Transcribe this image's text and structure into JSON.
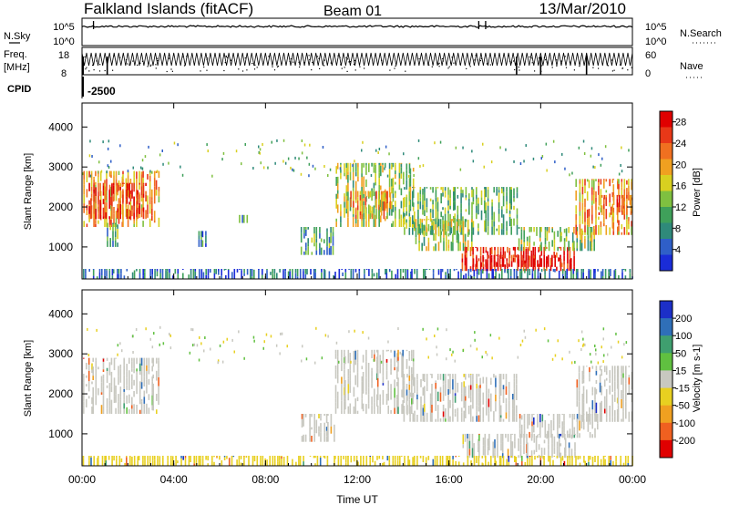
{
  "header": {
    "station": "Falkland Islands (fitACF)",
    "beam": "Beam 01",
    "date": "13/Mar/2010"
  },
  "params": {
    "nsky_label": "N.Sky",
    "nsky_ticks": [
      "10^5",
      "10^0"
    ],
    "nsearch_label": "N.Search",
    "nsearch_ticks": [
      "10^5",
      "10^0"
    ],
    "freq_label_1": "Freq.",
    "freq_label_2": "[MHz]",
    "freq_ticks": [
      "18",
      "8"
    ],
    "nave_label": "Nave",
    "nave_ticks": [
      "60",
      "0"
    ],
    "cpid_label": "CPID",
    "cpid_value": "-2500"
  },
  "x_axis": {
    "label": "Time UT",
    "ticks": [
      "00:00",
      "04:00",
      "08:00",
      "12:00",
      "16:00",
      "20:00",
      "00:00"
    ]
  },
  "chart_data": [
    {
      "type": "heatmap",
      "panel": "power",
      "ylabel": "Slant Range [km]",
      "yticks": [
        1000,
        2000,
        3000,
        4000
      ],
      "ylim": [
        200,
        4600
      ],
      "xlim_hours": [
        0,
        24
      ],
      "colorbar_label": "Power [dB]",
      "colorbar_ticks": [
        4,
        8,
        12,
        16,
        20,
        24,
        28
      ],
      "colorbar_colors": [
        "#1a2cd8",
        "#2f5fc8",
        "#2f8a7a",
        "#3fa05a",
        "#7fc040",
        "#d8d020",
        "#f0a020",
        "#f07020",
        "#e83818",
        "#e00000"
      ],
      "regions": [
        {
          "t": [
            0.0,
            3.4
          ],
          "r": [
            1500,
            2900
          ],
          "value": 20
        },
        {
          "t": [
            0.2,
            2.8
          ],
          "r": [
            1700,
            2600
          ],
          "value": 26
        },
        {
          "t": [
            1.0,
            1.6
          ],
          "r": [
            1000,
            1600
          ],
          "value": 10
        },
        {
          "t": [
            5.0,
            5.4
          ],
          "r": [
            1000,
            1400
          ],
          "value": 8
        },
        {
          "t": [
            6.8,
            7.2
          ],
          "r": [
            1600,
            1800
          ],
          "value": 10
        },
        {
          "t": [
            9.5,
            11.0
          ],
          "r": [
            800,
            1500
          ],
          "value": 10
        },
        {
          "t": [
            11.0,
            14.5
          ],
          "r": [
            1500,
            3100
          ],
          "value": 14
        },
        {
          "t": [
            11.5,
            13.5
          ],
          "r": [
            1700,
            2400
          ],
          "value": 20
        },
        {
          "t": [
            14.0,
            19.0
          ],
          "r": [
            1300,
            2500
          ],
          "value": 12
        },
        {
          "t": [
            14.5,
            17.0
          ],
          "r": [
            900,
            1700
          ],
          "value": 14
        },
        {
          "t": [
            16.5,
            21.5
          ],
          "r": [
            400,
            1000
          ],
          "value": 27
        },
        {
          "t": [
            17.0,
            21.0
          ],
          "r": [
            500,
            800
          ],
          "value": 29
        },
        {
          "t": [
            19.0,
            22.5
          ],
          "r": [
            900,
            1500
          ],
          "value": 14
        },
        {
          "t": [
            21.5,
            24.0
          ],
          "r": [
            1300,
            2700
          ],
          "value": 20
        },
        {
          "t": [
            22.5,
            24.0
          ],
          "r": [
            1800,
            2300
          ],
          "value": 24
        },
        {
          "t": [
            0.0,
            24.0
          ],
          "r": [
            200,
            450
          ],
          "value": 6
        }
      ]
    },
    {
      "type": "heatmap",
      "panel": "velocity",
      "ylabel": "Slant Range [km]",
      "yticks": [
        1000,
        2000,
        3000,
        4000
      ],
      "ylim": [
        200,
        4600
      ],
      "xlim_hours": [
        0,
        24
      ],
      "colorbar_label": "Velocity [m s-1]",
      "colorbar_ticks": [
        200,
        100,
        50,
        15,
        -15,
        -50,
        -100,
        -200
      ],
      "colorbar_colors": [
        "#1c2fc8",
        "#2f6fb8",
        "#3f9f6f",
        "#60c040",
        "#c8c8c0",
        "#e8d020",
        "#f0a020",
        "#f06020",
        "#e00000"
      ],
      "regions": [
        {
          "t": [
            0.0,
            3.4
          ],
          "r": [
            1500,
            2900
          ],
          "value": 0
        },
        {
          "t": [
            9.5,
            11.0
          ],
          "r": [
            800,
            1500
          ],
          "value": 0
        },
        {
          "t": [
            11.0,
            14.5
          ],
          "r": [
            1500,
            3100
          ],
          "value": 0
        },
        {
          "t": [
            14.0,
            19.0
          ],
          "r": [
            1300,
            2500
          ],
          "value": 0
        },
        {
          "t": [
            16.5,
            21.5
          ],
          "r": [
            400,
            1000
          ],
          "value": 0
        },
        {
          "t": [
            19.0,
            22.5
          ],
          "r": [
            900,
            1500
          ],
          "value": 0
        },
        {
          "t": [
            21.5,
            24.0
          ],
          "r": [
            1300,
            2700
          ],
          "value": 0
        },
        {
          "t": [
            0.0,
            24.0
          ],
          "r": [
            200,
            450
          ],
          "value": -40
        }
      ]
    }
  ]
}
